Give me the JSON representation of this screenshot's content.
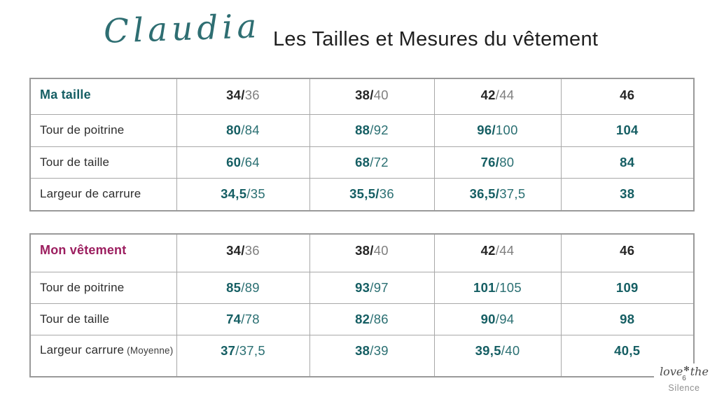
{
  "header": {
    "brand_script": "Claudia",
    "title": "Les Tailles et Mesures du vêtement"
  },
  "colors": {
    "teal_accent": "#155E63",
    "teal_light": "#2A6F72",
    "magenta_accent": "#9C1E5F",
    "header_number_dark": "#262626",
    "header_number_gray": "#7F7F7F",
    "border_gray": "#A8A8A8",
    "script_teal": "#2E6E72"
  },
  "tables": [
    {
      "label": "Ma taille",
      "label_color": "#155E63",
      "header_cells": [
        {
          "b": "34/",
          "r": "36"
        },
        {
          "b": "38/",
          "r": "40"
        },
        {
          "b": "42",
          "r": "/44"
        },
        {
          "b": "46",
          "r": ""
        }
      ],
      "rows": [
        {
          "label": "Tour de poitrine",
          "note": "",
          "cells": [
            {
              "b": "80",
              "r": "/84"
            },
            {
              "b": "88",
              "r": "/92"
            },
            {
              "b": "96/",
              "r": "100"
            },
            {
              "b": "104",
              "r": ""
            }
          ]
        },
        {
          "label": "Tour de taille",
          "note": "",
          "cells": [
            {
              "b": "60",
              "r": "/64"
            },
            {
              "b": "68",
              "r": "/72"
            },
            {
              "b": "76/",
              "r": "80"
            },
            {
              "b": "84",
              "r": ""
            }
          ]
        },
        {
          "label": "Largeur de carrure",
          "note": "",
          "cells": [
            {
              "b": "34,5",
              "r": "/35"
            },
            {
              "b": "35,5/",
              "r": "36"
            },
            {
              "b": "36,5/",
              "r": "37,5"
            },
            {
              "b": "38",
              "r": ""
            }
          ]
        }
      ]
    },
    {
      "label": "Mon vêtement",
      "label_color": "#9C1E5F",
      "header_cells": [
        {
          "b": "34/",
          "r": "36"
        },
        {
          "b": "38/",
          "r": "40"
        },
        {
          "b": "42",
          "r": "/44"
        },
        {
          "b": "46",
          "r": ""
        }
      ],
      "rows": [
        {
          "label": "Tour de poitrine",
          "note": "",
          "cells": [
            {
              "b": "85",
              "r": "/89"
            },
            {
              "b": "93",
              "r": "/97"
            },
            {
              "b": "101",
              "r": "/105"
            },
            {
              "b": "109",
              "r": ""
            }
          ]
        },
        {
          "label": "Tour de taille",
          "note": "",
          "cells": [
            {
              "b": "74",
              "r": "/78"
            },
            {
              "b": "82",
              "r": "/86"
            },
            {
              "b": "90",
              "r": "/94"
            },
            {
              "b": "98",
              "r": ""
            }
          ]
        },
        {
          "label": "Largeur carrure",
          "note": "(Moyenne)",
          "cells": [
            {
              "b": "37",
              "r": "/37,5"
            },
            {
              "b": "38",
              "r": "/39"
            },
            {
              "b": "39,5",
              "r": "/40"
            },
            {
              "b": "40,5",
              "r": ""
            }
          ]
        }
      ]
    }
  ],
  "footer": {
    "script_left": "love",
    "flower": "✻",
    "script_right": "the",
    "page_number": "6",
    "brand": "Silence"
  }
}
